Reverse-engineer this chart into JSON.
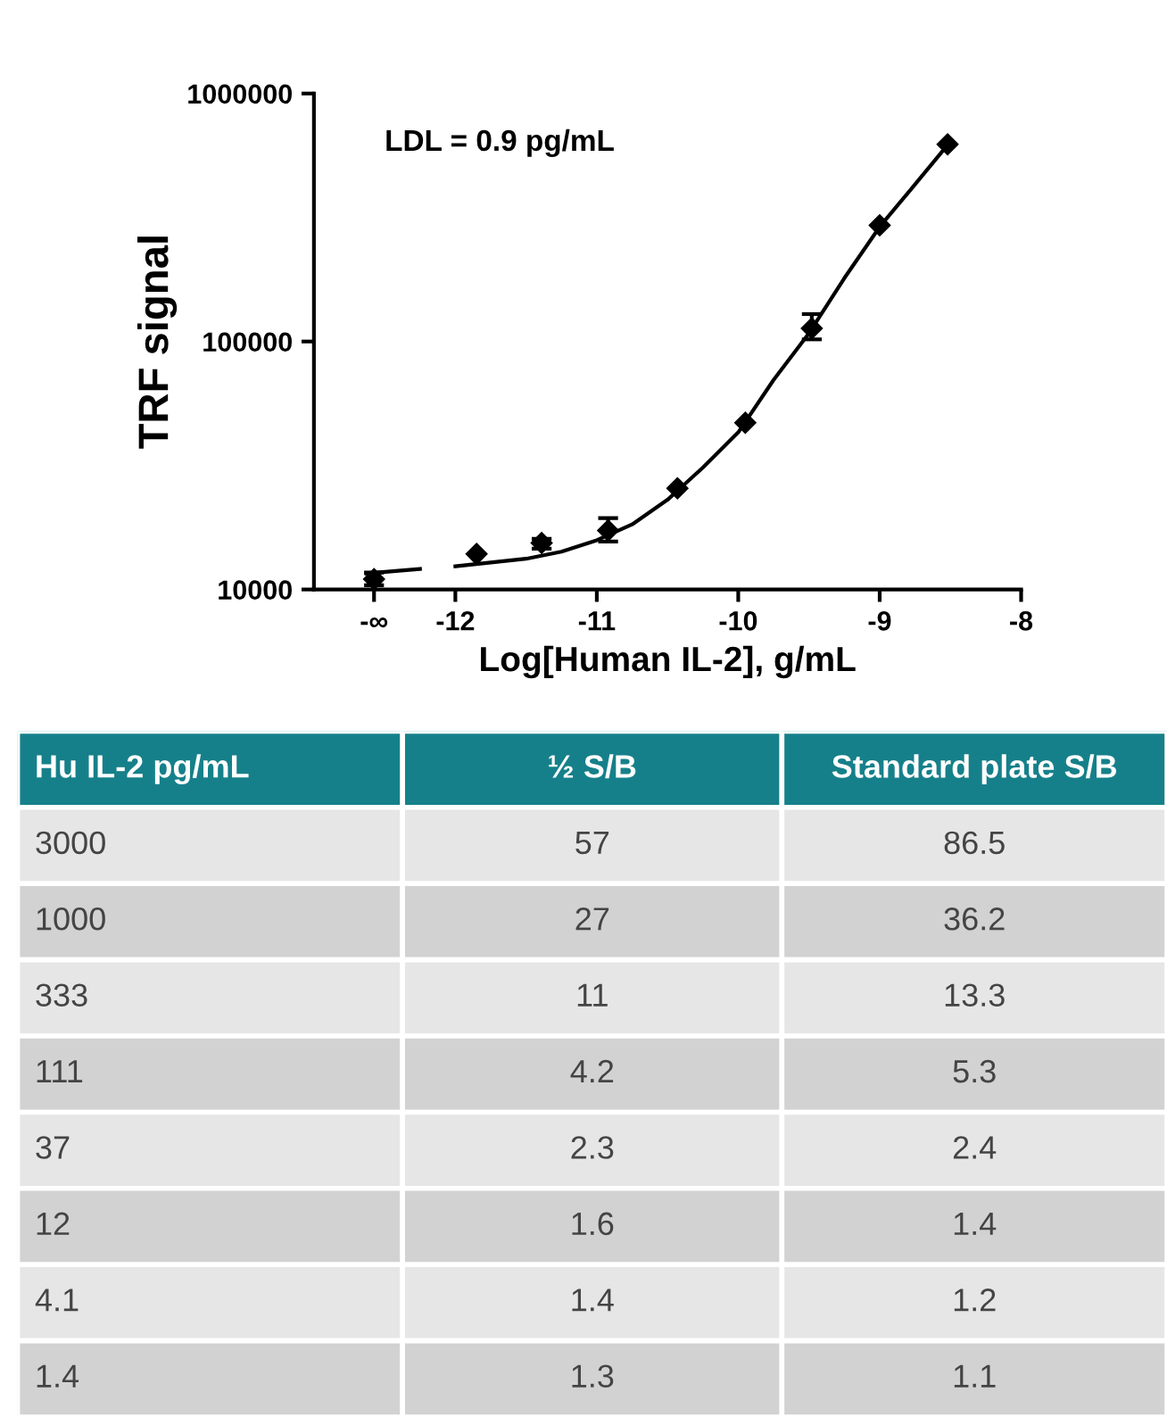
{
  "chart_data": [
    {
      "type": "scatter",
      "xlabel": "Log[Human IL-2], g/mL",
      "ylabel": "TRF signal",
      "log": "y",
      "xlim": [
        -13,
        -8
      ],
      "xticks": [
        {
          "value": -12.575,
          "label": "-∞"
        },
        -12,
        -11,
        -10,
        -9,
        -8
      ],
      "ylim": [
        10000,
        1000000
      ],
      "yticks": [
        10000,
        100000,
        1000000
      ],
      "marker": "diamond",
      "grid": false,
      "legend": false,
      "annotations": [
        "LDL = 0.9 pg/mL"
      ],
      "series": [
        {
          "color": "#000000",
          "x": [
            -12.575,
            -11.85,
            -11.39,
            -10.92,
            -10.43,
            -9.95,
            -9.48,
            -9.0,
            -8.52
          ],
          "values": [
            11000,
            13900,
            15400,
            17300,
            25600,
            47000,
            113000,
            294000,
            624000
          ],
          "errors": [
            [
              10400,
              11700
            ],
            null,
            [
              14600,
              16000
            ],
            [
              15600,
              19400
            ],
            null,
            null,
            [
              102000,
              129000
            ],
            null,
            null
          ]
        },
        {
          "type": "line",
          "color": "#000000",
          "marker": "none",
          "x": [
            -12.63,
            -12.25,
            -12.1,
            -12.0,
            -11.5,
            -11.25,
            -11.0,
            -10.75,
            -10.5,
            -10.25,
            -10.0,
            -9.75,
            -9.5,
            -9.25,
            -9.0,
            -8.75,
            -8.52
          ],
          "values": [
            11600,
            12100,
            null,
            12400,
            13300,
            14200,
            15800,
            18300,
            23000,
            31000,
            43000,
            70000,
            108000,
            180000,
            290000,
            430000,
            620000
          ]
        }
      ]
    },
    {
      "type": "other",
      "colors": [
        "#16808a",
        "#16808a",
        "#16808a"
      ],
      "categories": [
        "Hu IL-2 pg/mL",
        "½ S/B",
        "Standard plate S/B"
      ],
      "cell_labels": [
        [
          "3000",
          "57",
          "86.5"
        ],
        [
          "1000",
          "27",
          "36.2"
        ],
        [
          "333",
          "11",
          "13.3"
        ],
        [
          "111",
          "4.2",
          "5.3"
        ],
        [
          "37",
          "2.3",
          "2.4"
        ],
        [
          "12",
          "1.6",
          "1.4"
        ],
        [
          "4.1",
          "1.4",
          "1.2"
        ],
        [
          "1.4",
          "1.3",
          "1.1"
        ]
      ]
    }
  ]
}
